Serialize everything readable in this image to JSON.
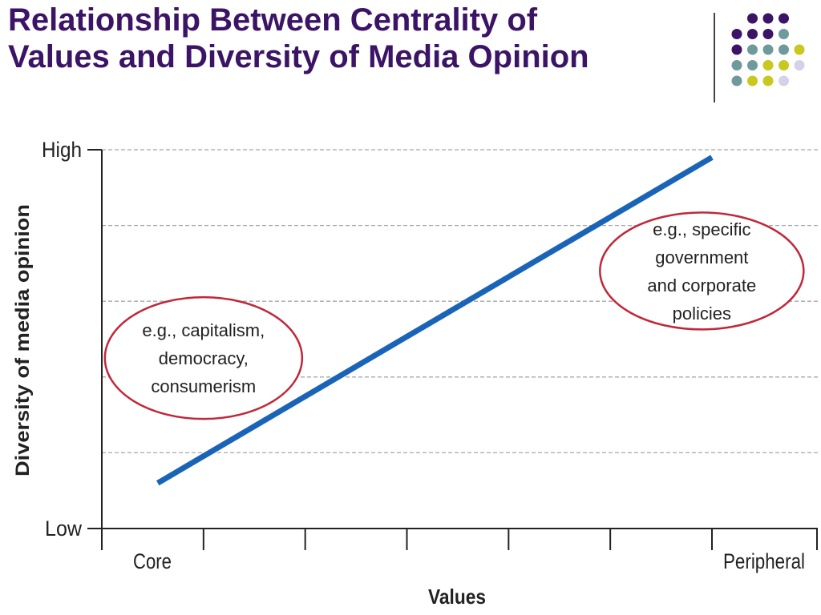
{
  "slide": {
    "title_line1": "Relationship Between Centrality of",
    "title_line2": "Values and Diversity of Media Opinion",
    "title_color": "#3b1466",
    "decor_dot_colors": [
      "#3b1466",
      "#6f9a9c",
      "#c8c81e",
      "#d4d2e6"
    ]
  },
  "chart_data": {
    "type": "line",
    "title": "",
    "xlabel": "Values",
    "ylabel": "Diversity of media opinion",
    "x_tick_labels": [
      "Core",
      "",
      "",
      "",
      "",
      "",
      "Peripheral"
    ],
    "y_tick_labels": [
      "Low",
      "",
      "",
      "",
      "",
      "High"
    ],
    "xlim": [
      0,
      6
    ],
    "ylim": [
      0,
      5
    ],
    "grid": true,
    "series": [
      {
        "values": [
          [
            0.55,
            0.6
          ],
          [
            6.0,
            4.9
          ]
        ],
        "color": "#1a64b8"
      }
    ],
    "annotations": [
      {
        "lines": [
          "e.g., capitalism,",
          "democracy,",
          "consumerism"
        ],
        "x": 1.0,
        "y": 2.25,
        "border_color": "#c0283a"
      },
      {
        "lines": [
          "e.g., specific",
          "government",
          "and corporate",
          "policies"
        ],
        "x": 5.9,
        "y": 3.4,
        "border_color": "#c0283a"
      }
    ]
  }
}
